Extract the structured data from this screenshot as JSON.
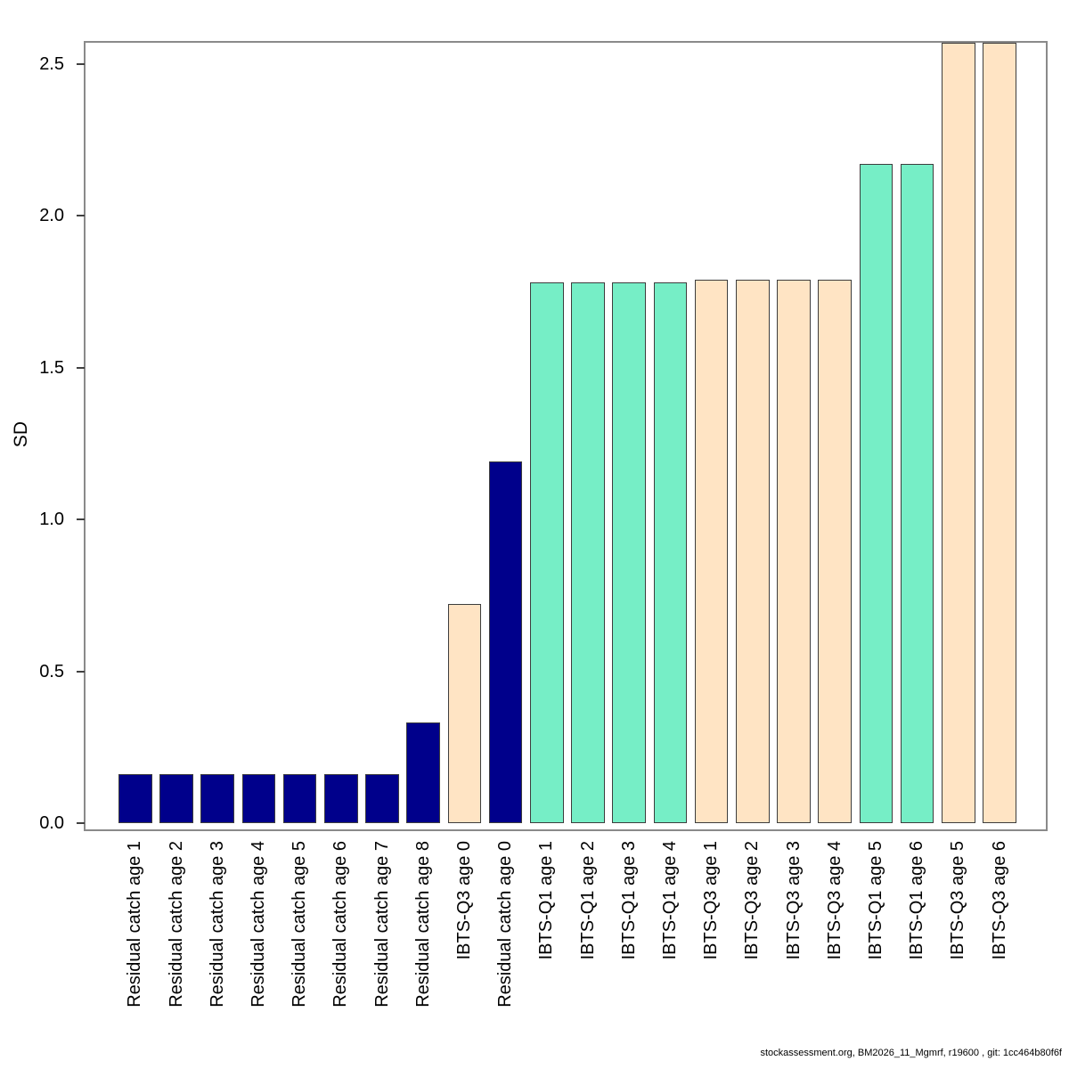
{
  "figure": {
    "y_axis_title": "SD",
    "footer": "stockassessment.org, BM2026_11_Mgmrf, r19600 , git: 1cc464b80f6f"
  },
  "palette": {
    "residual_catch": "#00008B",
    "ibts_q1": "#76EEC6",
    "ibts_q3": "#FFE4C4",
    "bar_border": "#3d3d3d",
    "box_border": "#8a8a8a"
  },
  "chart_data": {
    "type": "bar",
    "title": "",
    "xlabel": "",
    "ylabel": "SD",
    "ylim": [
      0,
      2.57
    ],
    "yticks": [
      "0.0",
      "0.5",
      "1.0",
      "1.5",
      "2.0",
      "2.5"
    ],
    "ytick_values": [
      0.0,
      0.5,
      1.0,
      1.5,
      2.0,
      2.5
    ],
    "grid": false,
    "legend_position": "none",
    "categories": [
      "Residual catch age 1",
      "Residual catch age 2",
      "Residual catch age 3",
      "Residual catch age 4",
      "Residual catch age 5",
      "Residual catch age 6",
      "Residual catch age 7",
      "Residual catch age 8",
      "IBTS-Q3 age 0",
      "Residual catch age 0",
      "IBTS-Q1 age 1",
      "IBTS-Q1 age 2",
      "IBTS-Q1 age 3",
      "IBTS-Q1 age 4",
      "IBTS-Q3 age 1",
      "IBTS-Q3 age 2",
      "IBTS-Q3 age 3",
      "IBTS-Q3 age 4",
      "IBTS-Q1 age 5",
      "IBTS-Q1 age 6",
      "IBTS-Q3 age 5",
      "IBTS-Q3 age 6"
    ],
    "values": [
      0.16,
      0.16,
      0.16,
      0.16,
      0.16,
      0.16,
      0.16,
      0.33,
      0.72,
      1.19,
      1.78,
      1.78,
      1.78,
      1.78,
      1.79,
      1.79,
      1.79,
      1.79,
      2.17,
      2.17,
      2.57,
      2.57
    ],
    "bar_fleets": [
      "residual_catch",
      "residual_catch",
      "residual_catch",
      "residual_catch",
      "residual_catch",
      "residual_catch",
      "residual_catch",
      "residual_catch",
      "ibts_q3",
      "residual_catch",
      "ibts_q1",
      "ibts_q1",
      "ibts_q1",
      "ibts_q1",
      "ibts_q3",
      "ibts_q3",
      "ibts_q3",
      "ibts_q3",
      "ibts_q1",
      "ibts_q1",
      "ibts_q3",
      "ibts_q3"
    ]
  }
}
